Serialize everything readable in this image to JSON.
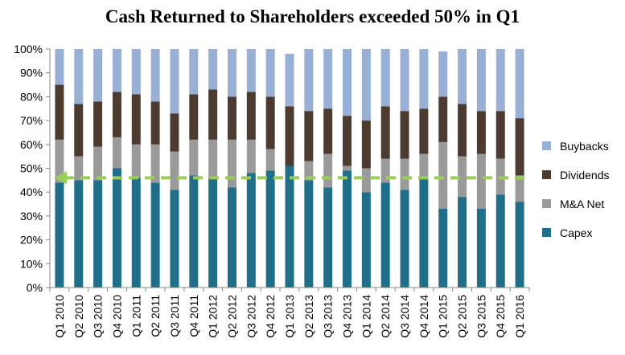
{
  "chart_data": {
    "type": "bar",
    "stacked": true,
    "title": "Cash Returned to Shareholders exceeded 50% in Q1",
    "xlabel": "",
    "ylabel": "",
    "ylim": [
      0,
      100
    ],
    "y_ticks": [
      "0%",
      "10%",
      "20%",
      "30%",
      "40%",
      "50%",
      "60%",
      "70%",
      "80%",
      "90%",
      "100%"
    ],
    "categories": [
      "Q1 2010",
      "Q2 2010",
      "Q3 2010",
      "Q4 2010",
      "Q1 2011",
      "Q2 2011",
      "Q3 2011",
      "Q4 2011",
      "Q1 2012",
      "Q2 2012",
      "Q3 2012",
      "Q4 2012",
      "Q1 2013",
      "Q2 2013",
      "Q3 2013",
      "Q4 2013",
      "Q1 2014",
      "Q2 2014",
      "Q3 2014",
      "Q4 2014",
      "Q1 2015",
      "Q2 2015",
      "Q3 2015",
      "Q4 2015",
      "Q1 2016"
    ],
    "series": [
      {
        "name": "Capex",
        "color": "#1f6f8b",
        "values": [
          44,
          45,
          45,
          50,
          46,
          44,
          41,
          47,
          46,
          42,
          48,
          49,
          51,
          45,
          42,
          49,
          40,
          44,
          41,
          46,
          33,
          38,
          33,
          39,
          36
        ]
      },
      {
        "name": "M&A Net",
        "color": "#9a9a9a",
        "values": [
          18,
          10,
          14,
          13,
          14,
          16,
          16,
          15,
          16,
          20,
          14,
          9,
          0,
          8,
          14,
          2,
          10,
          10,
          13,
          10,
          28,
          17,
          23,
          15,
          11
        ]
      },
      {
        "name": "Dividends",
        "color": "#4d3b30",
        "values": [
          23,
          22,
          19,
          19,
          21,
          18,
          16,
          19,
          21,
          18,
          20,
          22,
          25,
          21,
          19,
          21,
          20,
          22,
          20,
          19,
          19,
          22,
          18,
          20,
          24
        ]
      },
      {
        "name": "Buybacks",
        "color": "#98afd6",
        "values": [
          15,
          23,
          22,
          18,
          19,
          22,
          27,
          19,
          17,
          20,
          18,
          20,
          22,
          26,
          25,
          28,
          30,
          24,
          26,
          25,
          19,
          23,
          26,
          26,
          29
        ]
      }
    ],
    "reference_line": {
      "value": 46,
      "color": "#9acd57",
      "style": "dashed",
      "arrow": "left"
    },
    "legend": {
      "placement": "right",
      "order": [
        "Buybacks",
        "Dividends",
        "M&A Net",
        "Capex"
      ]
    },
    "grid": false
  }
}
